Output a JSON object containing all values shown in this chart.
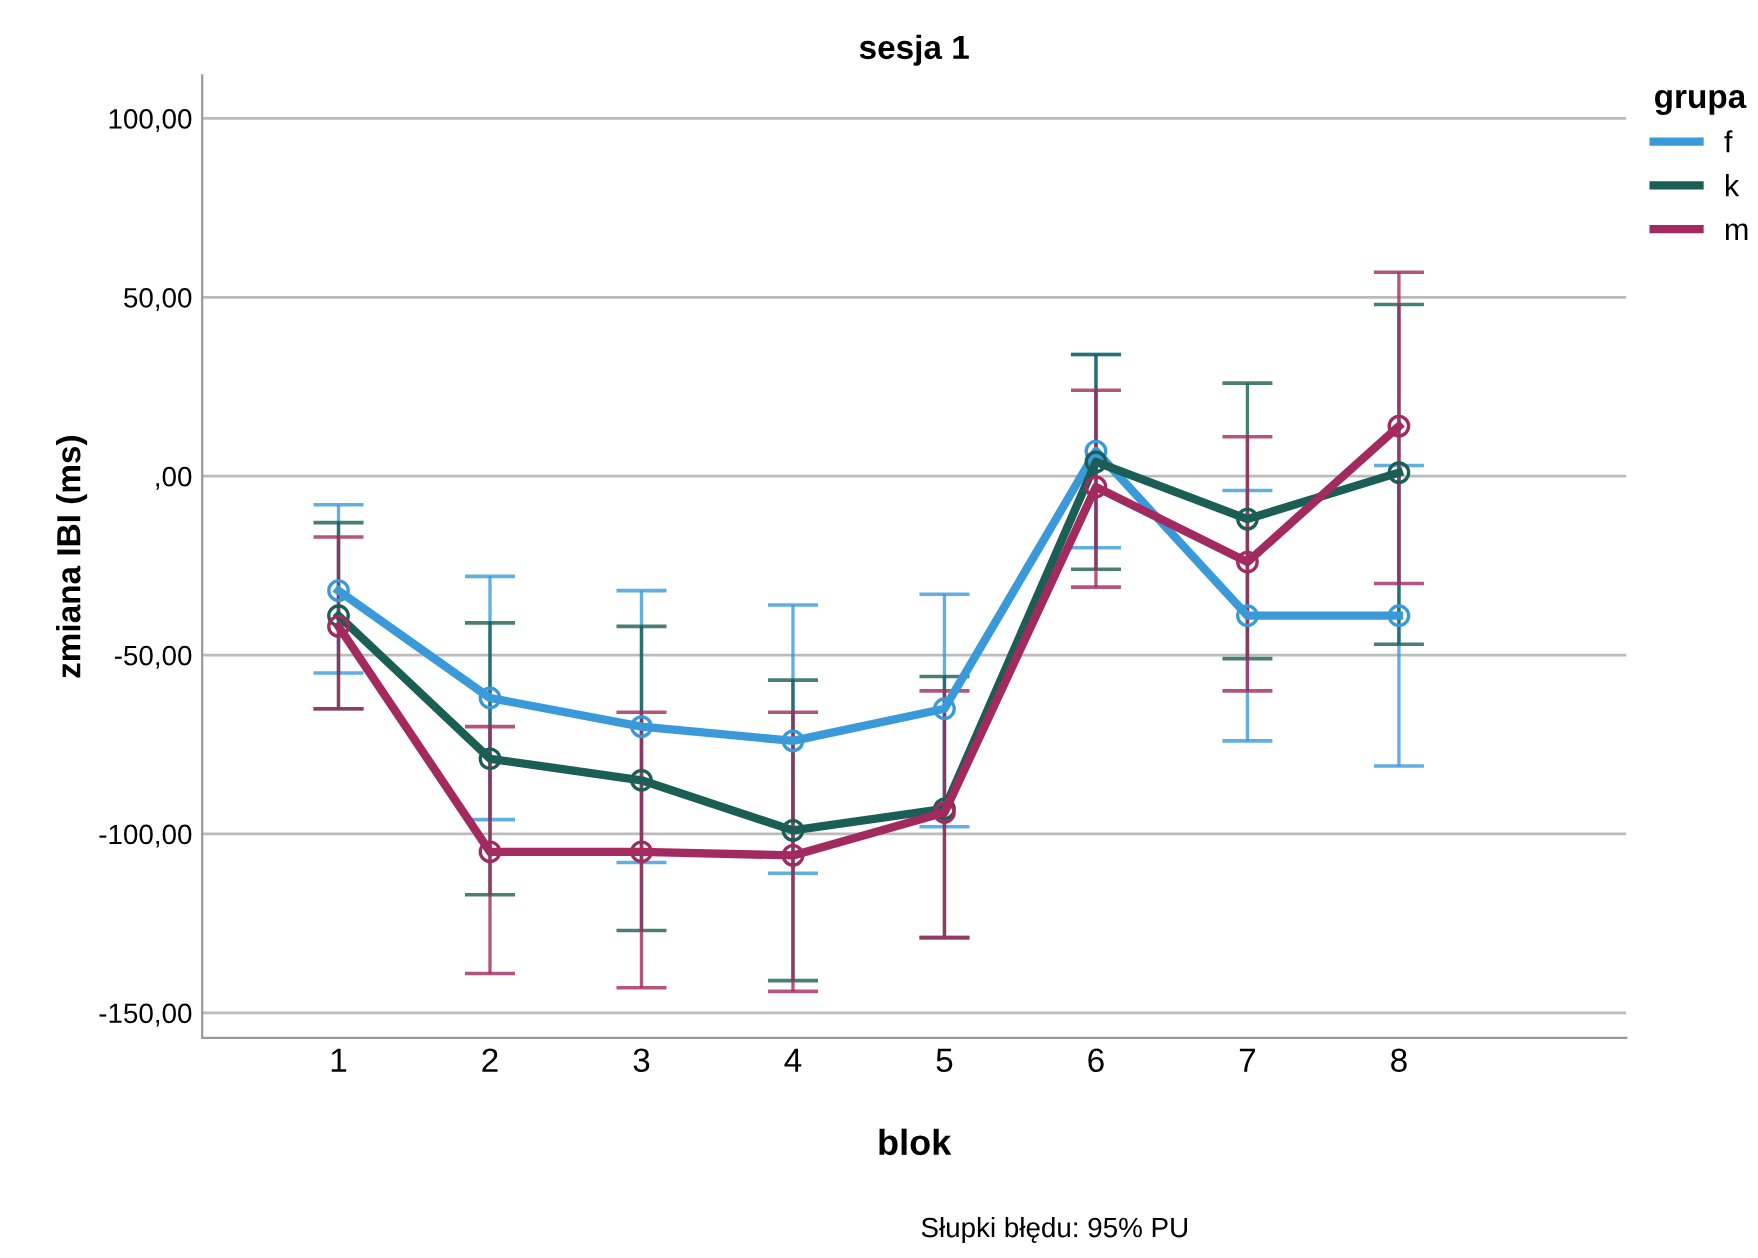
{
  "chart_data": {
    "type": "line",
    "title": "sesja 1",
    "xlabel": "blok",
    "ylabel": "zmiana IBI (ms)",
    "legend_title": "grupa",
    "legend": "top right",
    "grid": "y",
    "marker": "circle",
    "line_style": "solid",
    "categories": [
      "1",
      "2",
      "3",
      "4",
      "5",
      "6",
      "7",
      "8"
    ],
    "ylim": [
      -157,
      112
    ],
    "yticks": [
      {
        "value": -150,
        "label": "-150,00"
      },
      {
        "value": -100,
        "label": "-100,00"
      },
      {
        "value": -50,
        "label": "-50,00"
      },
      {
        "value": 0,
        "label": ",00"
      },
      {
        "value": 50,
        "label": "50,00"
      },
      {
        "value": 100,
        "label": "100,00"
      }
    ],
    "series": [
      {
        "name": "f",
        "color": "#3a9ad9",
        "values": [
          -32,
          -62,
          -70,
          -74,
          -65,
          7,
          -39,
          -39
        ],
        "errors": [
          [
            -55,
            -8
          ],
          [
            -96,
            -28
          ],
          [
            -108,
            -32
          ],
          [
            -111,
            -36
          ],
          [
            -98,
            -33
          ],
          [
            -20,
            34
          ],
          [
            -74,
            -4
          ],
          [
            -81,
            3
          ]
        ]
      },
      {
        "name": "k",
        "color": "#1b5e55",
        "values": [
          -39,
          -79,
          -85,
          -99,
          -93,
          4,
          -12,
          1
        ],
        "errors": [
          [
            -65,
            -13
          ],
          [
            -117,
            -41
          ],
          [
            -127,
            -42
          ],
          [
            -141,
            -57
          ],
          [
            -129,
            -56
          ],
          [
            -26,
            34
          ],
          [
            -51,
            26
          ],
          [
            -47,
            48
          ]
        ]
      },
      {
        "name": "m",
        "color": "#a32a5f",
        "values": [
          -42,
          -105,
          -105,
          -106,
          -94,
          -3,
          -24,
          14
        ],
        "errors": [
          [
            -65,
            -17
          ],
          [
            -139,
            -70
          ],
          [
            -143,
            -66
          ],
          [
            -144,
            -66
          ],
          [
            -129,
            -60
          ],
          [
            -31,
            24
          ],
          [
            -60,
            11
          ],
          [
            -30,
            57
          ]
        ]
      }
    ],
    "annotations": [
      "Słupki błędu: 95% PU"
    ]
  }
}
